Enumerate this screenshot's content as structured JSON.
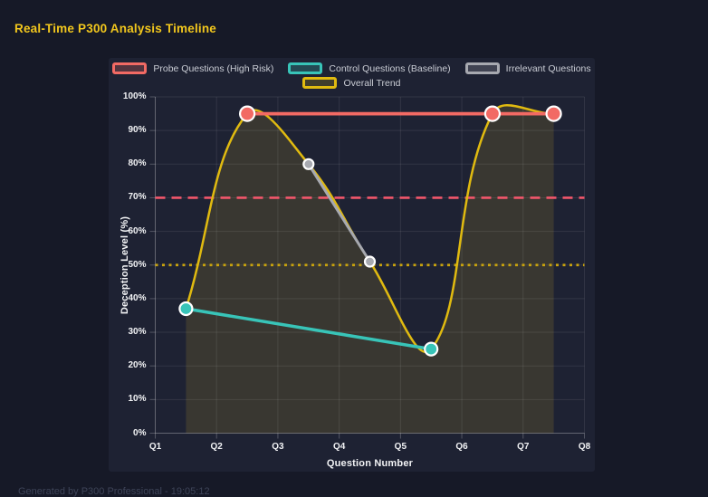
{
  "page": {
    "title": "Real-Time P300 Analysis Timeline",
    "footer": "Generated by P300 Professional - 19:05:12"
  },
  "colors": {
    "page_bg": "#161927",
    "card_bg": "#1e2233",
    "grid": "rgba(255,255,255,0.09)",
    "axis_border": "rgba(255,255,255,0.24)",
    "tick_text": "#f2f3f5",
    "title_text": "#f2c71d",
    "legend_text": "#c9ccd4",
    "footer_text": "#3e4458"
  },
  "chart_data": {
    "type": "line",
    "title": "Real-Time P300 Analysis Timeline",
    "xlabel": "Question Number",
    "ylabel": "Deception Level (%)",
    "xlim": [
      1,
      8
    ],
    "ylim": [
      0,
      100
    ],
    "grid": true,
    "legend_position": "top",
    "x_ticks": [
      {
        "value": 1,
        "label": "Q1"
      },
      {
        "value": 2,
        "label": "Q2"
      },
      {
        "value": 3,
        "label": "Q3"
      },
      {
        "value": 4,
        "label": "Q4"
      },
      {
        "value": 5,
        "label": "Q5"
      },
      {
        "value": 6,
        "label": "Q6"
      },
      {
        "value": 7,
        "label": "Q7"
      },
      {
        "value": 8,
        "label": "Q8"
      }
    ],
    "y_ticks": [
      {
        "value": 0,
        "label": "0%"
      },
      {
        "value": 10,
        "label": "10%"
      },
      {
        "value": 20,
        "label": "20%"
      },
      {
        "value": 30,
        "label": "30%"
      },
      {
        "value": 40,
        "label": "40%"
      },
      {
        "value": 50,
        "label": "50%"
      },
      {
        "value": 60,
        "label": "60%"
      },
      {
        "value": 70,
        "label": "70%"
      },
      {
        "value": 80,
        "label": "80%"
      },
      {
        "value": 90,
        "label": "90%"
      },
      {
        "value": 100,
        "label": "100%"
      }
    ],
    "series": [
      {
        "name": "Probe Questions (High Risk)",
        "color": "#f26a64",
        "swatch_fill": "rgba(242,106,100,0.25)",
        "line_width": 3.8,
        "point_radius": 8,
        "point_border": "#ffffff",
        "smooth": false,
        "fill": false,
        "points": [
          {
            "x": 2.5,
            "y": 95
          },
          {
            "x": 6.5,
            "y": 95
          },
          {
            "x": 7.5,
            "y": 95
          }
        ]
      },
      {
        "name": "Control Questions (Baseline)",
        "color": "#38c4b8",
        "swatch_fill": "rgba(56,196,184,0.25)",
        "line_width": 3.5,
        "point_radius": 7,
        "point_border": "#ffffff",
        "smooth": false,
        "fill": false,
        "points": [
          {
            "x": 1.5,
            "y": 37
          },
          {
            "x": 5.5,
            "y": 25
          }
        ]
      },
      {
        "name": "Irrelevant Questions",
        "color": "#a7a9b0",
        "swatch_fill": "rgba(167,169,176,0.25)",
        "line_width": 3,
        "point_radius": 5.5,
        "point_border": "#ffffff",
        "smooth": false,
        "fill": false,
        "points": [
          {
            "x": 3.5,
            "y": 80
          },
          {
            "x": 4.5,
            "y": 51
          }
        ]
      },
      {
        "name": "Overall Trend",
        "color": "#e0ba10",
        "swatch_fill": "rgba(224,186,16,0.18)",
        "area_fill": "rgba(214,178,40,0.15)",
        "line_width": 2.5,
        "point_radius": 0,
        "smooth": true,
        "fill": true,
        "points": [
          {
            "x": 1.5,
            "y": 37
          },
          {
            "x": 2.5,
            "y": 95
          },
          {
            "x": 3.5,
            "y": 80
          },
          {
            "x": 4.5,
            "y": 51
          },
          {
            "x": 5.5,
            "y": 25
          },
          {
            "x": 6.5,
            "y": 95
          },
          {
            "x": 7.5,
            "y": 95
          }
        ]
      }
    ],
    "thresholds": [
      {
        "y": 70,
        "color": "#f2566b",
        "style": "dashed",
        "width": 2.6
      },
      {
        "y": 50,
        "color": "#c9a30d",
        "style": "dotted",
        "width": 2.8
      }
    ]
  }
}
